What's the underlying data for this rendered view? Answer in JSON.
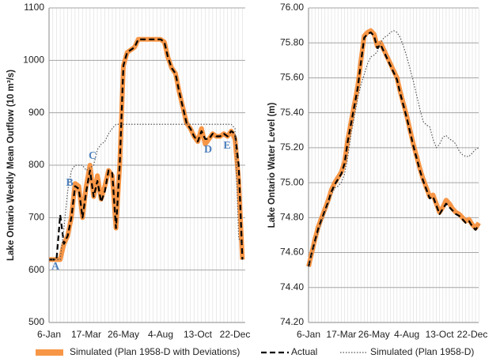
{
  "chart_data": [
    {
      "type": "line",
      "y_label": "Lake Ontario Weekly Mean Outflow (10 m³/s)",
      "categories": [
        "6-Jan",
        null,
        null,
        null,
        null,
        null,
        null,
        null,
        null,
        null,
        "17-Mar",
        null,
        null,
        null,
        null,
        null,
        null,
        null,
        null,
        null,
        "26-May",
        null,
        null,
        null,
        null,
        null,
        null,
        null,
        null,
        null,
        "4-Aug",
        null,
        null,
        null,
        null,
        null,
        null,
        null,
        null,
        null,
        "13-Oct",
        null,
        null,
        null,
        null,
        null,
        null,
        null,
        null,
        null,
        "22-Dec",
        null,
        null
      ],
      "series": [
        {
          "name": "Simulated (Plan 1958-D with Deviations)",
          "color": "#f79646",
          "line_style": "solid",
          "values": [
            620,
            620,
            620,
            620,
            650,
            665,
            700,
            765,
            760,
            700,
            760,
            800,
            740,
            780,
            735,
            760,
            790,
            780,
            680,
            800,
            990,
            1015,
            1020,
            1025,
            1040,
            1040,
            1040,
            1040,
            1040,
            1040,
            1040,
            1035,
            1005,
            985,
            975,
            940,
            910,
            880,
            870,
            855,
            845,
            870,
            840,
            850,
            860,
            855,
            855,
            860,
            855,
            865,
            850,
            770,
            620
          ]
        },
        {
          "name": "Actual",
          "color": "#000000",
          "line_style": "dashed",
          "values": [
            620,
            620,
            620,
            705,
            650,
            665,
            700,
            760,
            755,
            700,
            750,
            790,
            740,
            770,
            730,
            750,
            790,
            785,
            680,
            800,
            990,
            1015,
            1020,
            1025,
            1040,
            1040,
            1040,
            1040,
            1040,
            1040,
            1040,
            1035,
            1005,
            985,
            975,
            940,
            910,
            880,
            870,
            855,
            845,
            865,
            850,
            850,
            860,
            855,
            855,
            860,
            855,
            865,
            860,
            800,
            620
          ]
        },
        {
          "name": "Simulated (Plan 1958-D)",
          "color": "#555555",
          "line_style": "dotted",
          "values": [
            620,
            620,
            620,
            620,
            680,
            750,
            790,
            800,
            800,
            800,
            790,
            795,
            800,
            830,
            840,
            845,
            860,
            870,
            878,
            878,
            878,
            878,
            878,
            878,
            878,
            878,
            878,
            878,
            878,
            878,
            878,
            878,
            878,
            878,
            878,
            878,
            878,
            878,
            878,
            878,
            878,
            878,
            878,
            878,
            878,
            878,
            878,
            878,
            878,
            878,
            870,
            660,
            650
          ]
        }
      ],
      "annotations": [
        "A",
        "B",
        "C",
        "D",
        "E"
      ],
      "annotation_color": "#4f81bd",
      "ylim": [
        500,
        1100
      ],
      "yticks": [
        500,
        600,
        700,
        800,
        900,
        1000,
        1100
      ],
      "grid": true
    },
    {
      "type": "line",
      "y_label": "Lake Ontario Water Level (m)",
      "categories": [
        "6-Jan",
        null,
        null,
        null,
        null,
        null,
        null,
        null,
        null,
        null,
        "17-Mar",
        null,
        null,
        null,
        null,
        null,
        null,
        null,
        null,
        null,
        "26-May",
        null,
        null,
        null,
        null,
        null,
        null,
        null,
        null,
        null,
        "4-Aug",
        null,
        null,
        null,
        null,
        null,
        null,
        null,
        null,
        null,
        "13-Oct",
        null,
        null,
        null,
        null,
        null,
        null,
        null,
        null,
        null,
        "22-Dec",
        null,
        null
      ],
      "series": [
        {
          "name": "Simulated (Plan 1958-D with Deviations)",
          "color": "#f79646",
          "line_style": "solid",
          "values": [
            74.52,
            74.6,
            74.68,
            74.75,
            74.8,
            74.85,
            74.9,
            74.96,
            75.0,
            75.03,
            75.06,
            75.12,
            75.25,
            75.35,
            75.45,
            75.55,
            75.7,
            75.84,
            75.86,
            75.87,
            75.85,
            75.78,
            75.8,
            75.76,
            75.72,
            75.68,
            75.64,
            75.6,
            75.52,
            75.45,
            75.38,
            75.3,
            75.22,
            75.15,
            75.08,
            75.02,
            74.97,
            74.92,
            74.93,
            74.88,
            74.83,
            74.86,
            74.9,
            74.88,
            74.85,
            74.83,
            74.82,
            74.8,
            74.78,
            74.79,
            74.76,
            74.74,
            74.77
          ]
        },
        {
          "name": "Actual",
          "color": "#000000",
          "line_style": "dashed",
          "values": [
            74.52,
            74.6,
            74.67,
            74.74,
            74.79,
            74.84,
            74.89,
            74.95,
            74.99,
            75.02,
            75.05,
            75.11,
            75.24,
            75.34,
            75.44,
            75.54,
            75.69,
            75.83,
            75.85,
            75.86,
            75.84,
            75.77,
            75.79,
            75.75,
            75.71,
            75.67,
            75.63,
            75.59,
            75.51,
            75.44,
            75.37,
            75.29,
            75.21,
            75.14,
            75.07,
            75.01,
            74.96,
            74.91,
            74.92,
            74.87,
            74.82,
            74.85,
            74.88,
            74.86,
            74.84,
            74.82,
            74.81,
            74.79,
            74.77,
            74.78,
            74.75,
            74.73,
            74.76
          ]
        },
        {
          "name": "Simulated (Plan 1958-D)",
          "color": "#555555",
          "line_style": "dotted",
          "values": [
            74.52,
            74.6,
            74.66,
            74.72,
            74.78,
            74.83,
            74.88,
            74.93,
            74.97,
            74.98,
            75.0,
            75.05,
            75.15,
            75.28,
            75.38,
            75.48,
            75.56,
            75.62,
            75.68,
            75.72,
            75.73,
            75.75,
            75.8,
            75.83,
            75.84,
            75.86,
            75.87,
            75.86,
            75.83,
            75.78,
            75.72,
            75.65,
            75.58,
            75.5,
            75.42,
            75.35,
            75.33,
            75.32,
            75.25,
            75.2,
            75.22,
            75.26,
            75.27,
            75.25,
            75.24,
            75.22,
            75.18,
            75.16,
            75.15,
            75.15,
            75.17,
            75.19,
            75.2
          ]
        }
      ],
      "ylim": [
        74.2,
        76.0
      ],
      "yticks": [
        {
          "value": 74.2,
          "label": "74.20"
        },
        {
          "value": 74.4,
          "label": "74.40"
        },
        {
          "value": 74.6,
          "label": "74.60"
        },
        {
          "value": 74.8,
          "label": "74.80"
        },
        {
          "value": 75.0,
          "label": "75.00"
        },
        {
          "value": 75.2,
          "label": "75.20"
        },
        {
          "value": 75.4,
          "label": "75.40"
        },
        {
          "value": 75.6,
          "label": "75.60"
        },
        {
          "value": 75.8,
          "label": "75.80"
        },
        {
          "value": 76.0,
          "label": "76.00"
        }
      ],
      "grid": true
    }
  ]
}
